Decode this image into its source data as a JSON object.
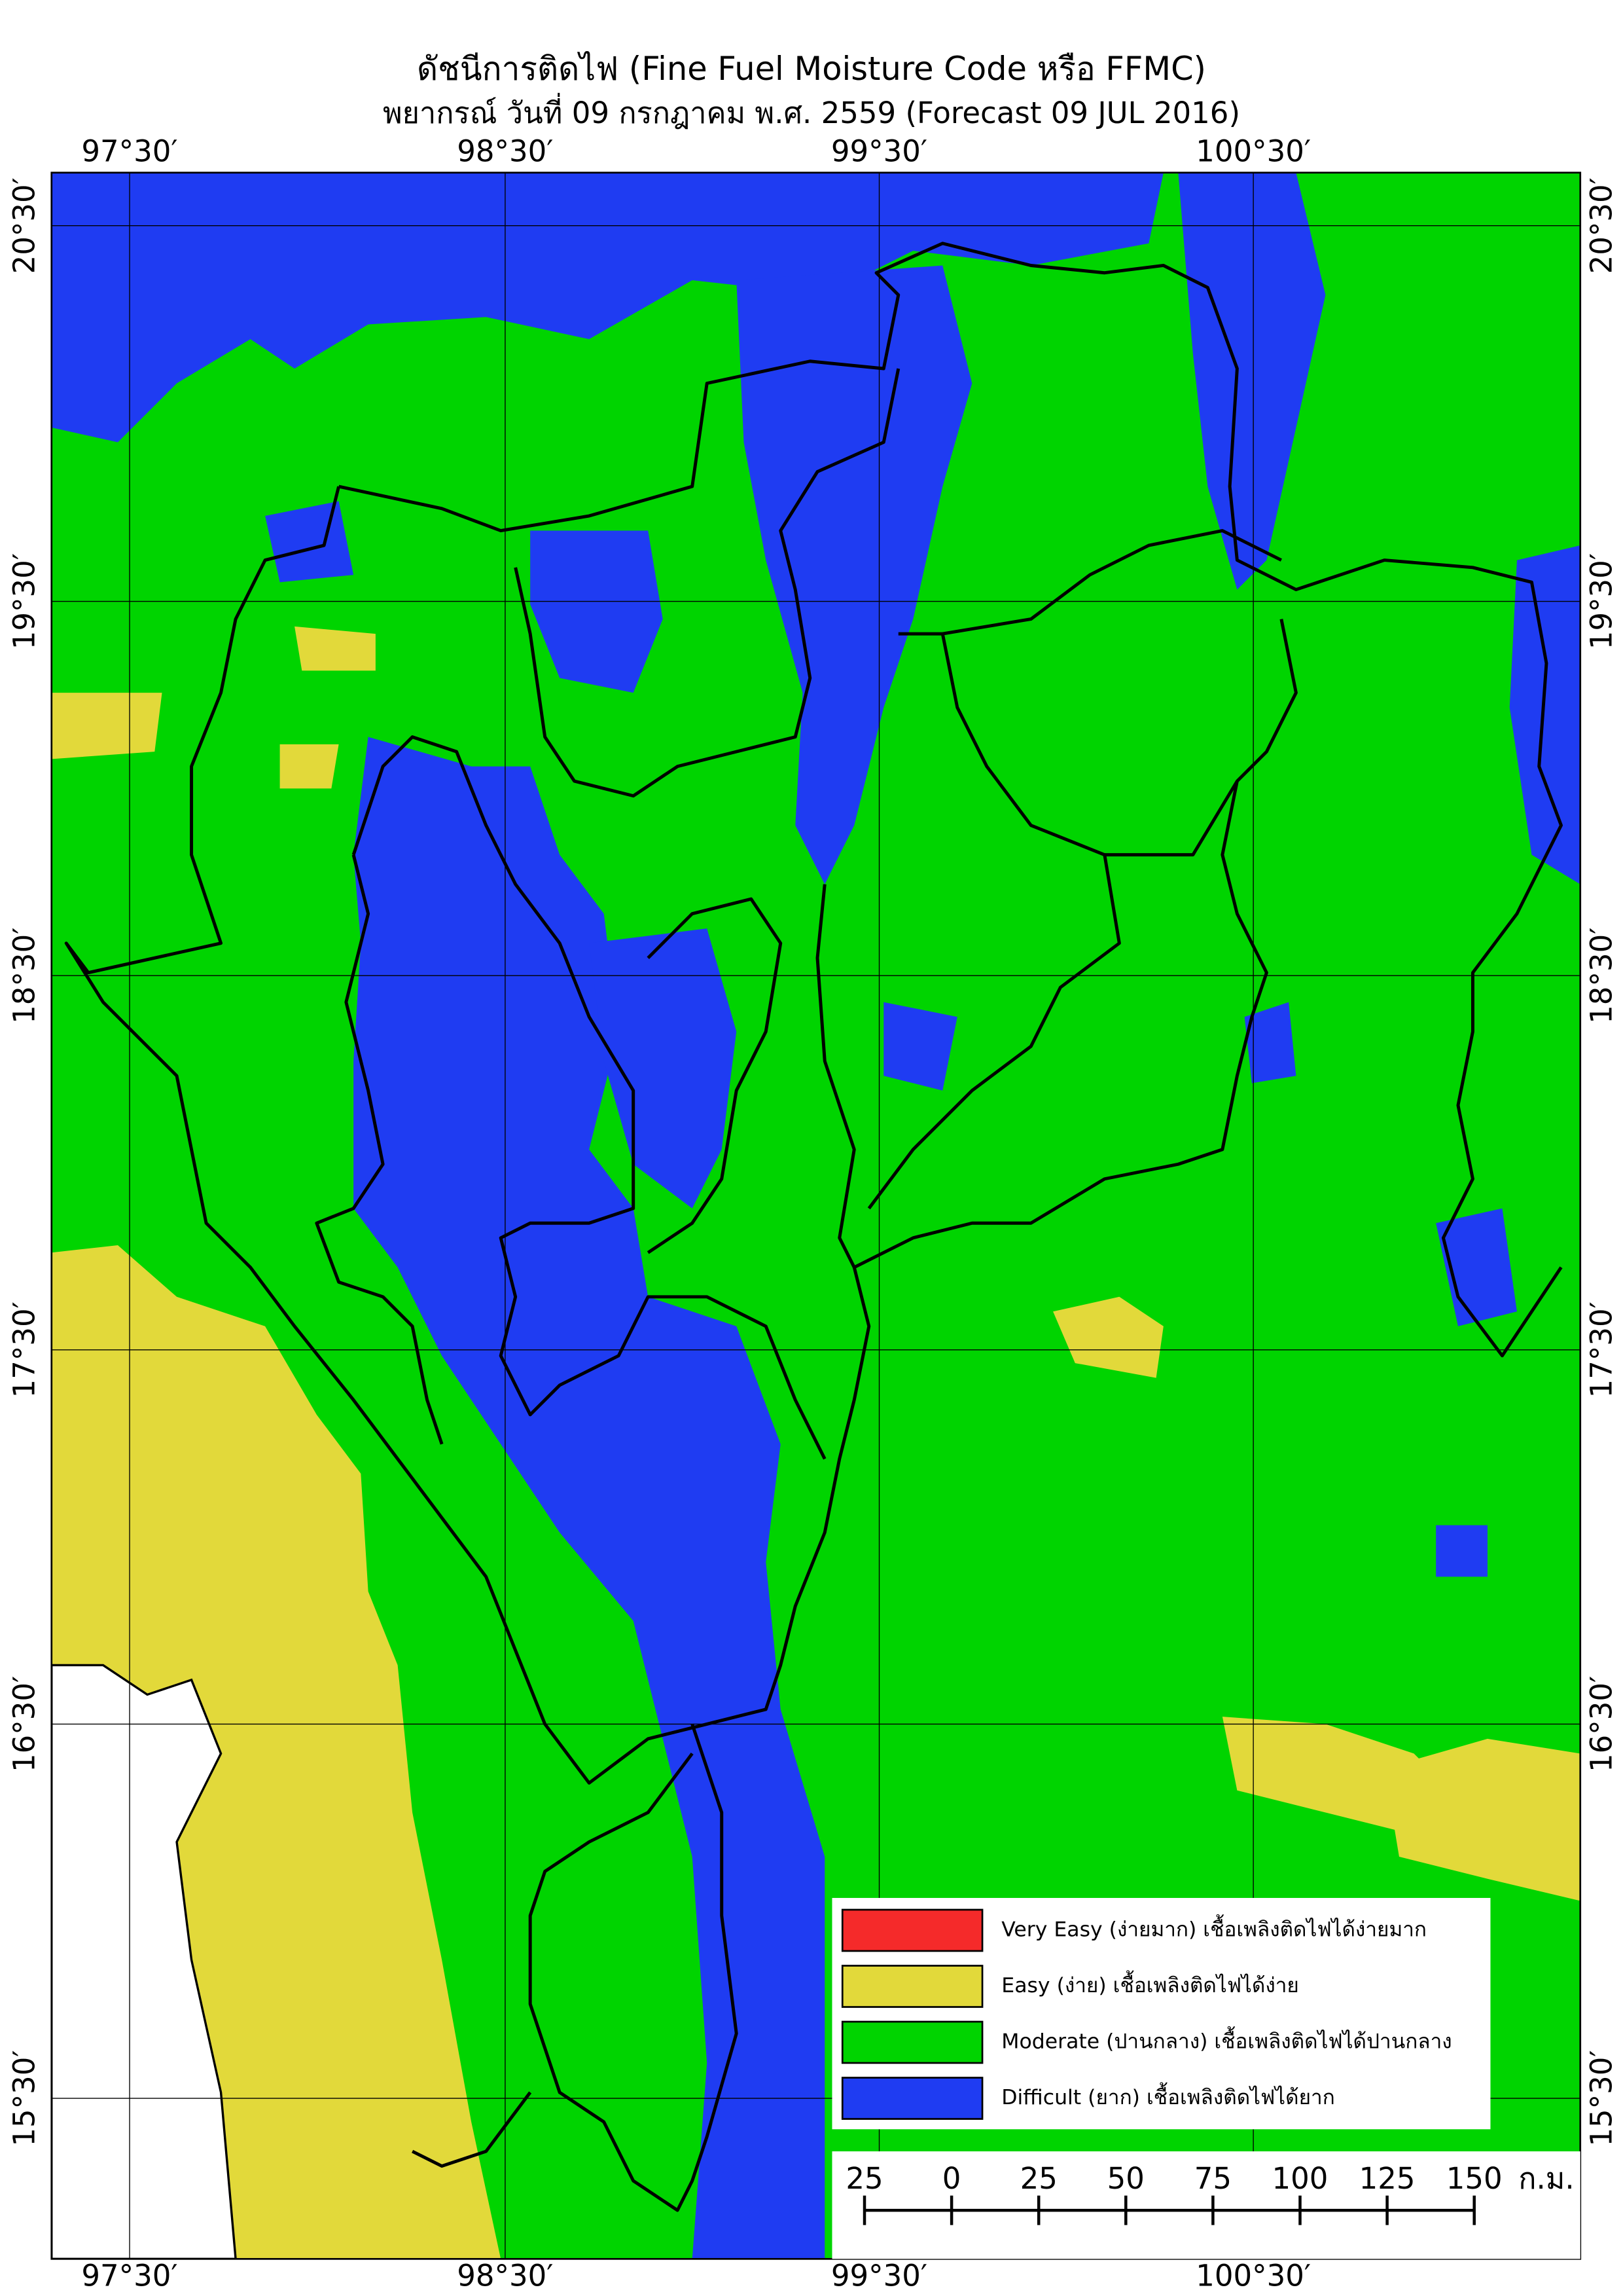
{
  "header": {
    "title": "ดัชนีการติดไฟ (Fine Fuel Moisture Code หรือ FFMC)",
    "subtitle": "พยากรณ์ วันที่ 09 กรกฎาคม พ.ศ. 2559 (Forecast 09 JUL 2016)"
  },
  "map": {
    "longitude_labels": [
      "97°30′",
      "98°30′",
      "99°30′",
      "100°30′"
    ],
    "latitude_labels": [
      "20°30′",
      "19°30′",
      "18°30′",
      "17°30′",
      "16°30′",
      "15°30′"
    ]
  },
  "legend": {
    "items": [
      {
        "label": "Very Easy (ง่ายมาก) เชื้อเพลิงติดไฟได้ง่ายมาก",
        "color": "#f52a2a"
      },
      {
        "label": "Easy (ง่าย) เชื้อเพลิงติดไฟได้ง่าย",
        "color": "#e2d93a"
      },
      {
        "label": "Moderate (ปานกลาง) เชื้อเพลิงติดไฟได้ปานกลาง",
        "color": "#00d400"
      },
      {
        "label": "Difficult (ยาก) เชื้อเพลิงติดไฟได้ยาก",
        "color": "#1f3cf2"
      }
    ]
  },
  "scale_bar": {
    "labels": [
      25,
      0,
      25,
      50,
      75,
      100,
      125,
      150
    ],
    "unit": "ก.ม."
  }
}
